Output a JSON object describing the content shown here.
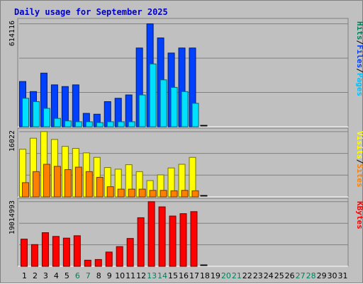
{
  "chart_data": {
    "type": "bar",
    "title": "Daily usage for September 2025",
    "days": [
      "1",
      "2",
      "3",
      "4",
      "5",
      "6",
      "7",
      "8",
      "9",
      "10",
      "11",
      "12",
      "13",
      "14",
      "15",
      "16",
      "17",
      "18",
      "19",
      "20",
      "21",
      "22",
      "23",
      "24",
      "25",
      "26",
      "27",
      "28",
      "29",
      "30",
      "31"
    ],
    "weekend_days": [
      "6",
      "7",
      "13",
      "14",
      "20",
      "21",
      "27",
      "28"
    ],
    "colors": {
      "hits": "#0040ff",
      "files": "#00e0ff",
      "pages": "#00c0ff",
      "visits": "#ffff00",
      "sites": "#ff8000",
      "kbytes": "#ff0000",
      "weekday_label": "#000000",
      "weekend_label": "#00805c",
      "title": "#0000cc",
      "plot_bg": "#c0c0c0",
      "grid": "#808080"
    },
    "panels": [
      {
        "name": "hits-files-pages",
        "max_label": "614116",
        "ymax": 614116,
        "legend": [
          "Pages",
          "/",
          "Files",
          "/",
          "Hits"
        ],
        "legend_colors": [
          "#00c0ff",
          "#000000",
          "#0040ff",
          "#000000",
          "#00805c"
        ],
        "series": [
          {
            "name": "Hits",
            "values": [
              270000,
              210000,
              320000,
              250000,
              240000,
              250000,
              80000,
              75000,
              150000,
              170000,
              190000,
              470000,
              614116,
              530000,
              440000,
              470000,
              470000
            ]
          },
          {
            "name": "Files",
            "values": [
              170000,
              150000,
              110000,
              50000,
              35000,
              30000,
              30000,
              25000,
              30000,
              30000,
              30000,
              190000,
              375000,
              280000,
              235000,
              210000,
              140000
            ]
          }
        ]
      },
      {
        "name": "visits-sites",
        "max_label": "16022",
        "ymax": 16022,
        "legend": [
          "Sites",
          "/",
          "Visits"
        ],
        "legend_colors": [
          "#ff8000",
          "#000000",
          "#ffff00"
        ],
        "series": [
          {
            "name": "Visits",
            "values": [
              11700,
              14400,
              16022,
              14100,
              12400,
              11900,
              10800,
              9700,
              7200,
              6800,
              7900,
              6200,
              4000,
              5400,
              7100,
              8000,
              9700
            ]
          },
          {
            "name": "Sites",
            "values": [
              3500,
              6200,
              8000,
              7500,
              6700,
              7300,
              6200,
              4800,
              2500,
              1900,
              1900,
              1900,
              1600,
              1600,
              1500,
              1600,
              1500
            ]
          }
        ]
      },
      {
        "name": "kbytes",
        "max_label": "19014993",
        "ymax": 19014993,
        "legend": [
          "KBytes"
        ],
        "legend_colors": [
          "#ff0000"
        ],
        "series": [
          {
            "name": "KBytes",
            "values": [
              8000000,
              6400000,
              9900000,
              8800000,
              8300000,
              9000000,
              1800000,
              2000000,
              4200000,
              5800000,
              8200000,
              14300000,
              19014993,
              17500000,
              14800000,
              15500000,
              16100000
            ]
          }
        ]
      }
    ]
  }
}
